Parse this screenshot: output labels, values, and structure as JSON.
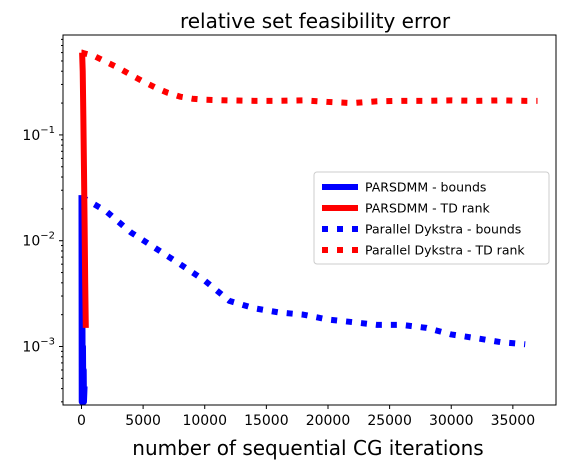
{
  "chart_data": {
    "type": "line",
    "title": "relative set feasibility error",
    "xlabel": "number of sequential CG iterations",
    "ylabel": "",
    "yscale": "log",
    "xlim": [
      -1500,
      38500
    ],
    "ylim": [
      0.00028,
      0.88
    ],
    "xticks": [
      0,
      5000,
      10000,
      15000,
      20000,
      25000,
      30000,
      35000
    ],
    "xtick_labels": [
      "0",
      "5000",
      "10000",
      "15000",
      "20000",
      "25000",
      "30000",
      "35000"
    ],
    "yticks": [
      0.001,
      0.01,
      0.1
    ],
    "ytick_labels": [
      {
        "base": "10",
        "exp": "−3"
      },
      {
        "base": "10",
        "exp": "−2"
      },
      {
        "base": "10",
        "exp": "−1"
      }
    ],
    "grid": false,
    "legend_position": "center-right",
    "series": [
      {
        "name": "PARSDMM - bounds",
        "color": "#0000ff",
        "style": "solid",
        "x": [
          0,
          20,
          40,
          60,
          80,
          100,
          120,
          150,
          180,
          200,
          250
        ],
        "y": [
          0.027,
          0.0003,
          0.002,
          0.0003,
          0.0015,
          0.0003,
          0.001,
          0.0003,
          0.0006,
          0.0003,
          0.00042
        ]
      },
      {
        "name": "PARSDMM - TD rank",
        "color": "#ff0000",
        "style": "solid",
        "x": [
          0,
          50,
          100,
          150,
          200,
          250,
          300,
          350
        ],
        "y": [
          0.6,
          0.6,
          0.4,
          0.15,
          0.05,
          0.015,
          0.004,
          0.0015
        ]
      },
      {
        "name": "Parallel Dykstra - bounds",
        "color": "#0000ff",
        "style": "dotted",
        "x": [
          0,
          2000,
          4000,
          6000,
          8000,
          10000,
          12000,
          14000,
          16000,
          18000,
          20000,
          22000,
          24000,
          26000,
          28000,
          30000,
          32000,
          34000,
          36000
        ],
        "y": [
          0.026,
          0.019,
          0.012,
          0.0085,
          0.006,
          0.0042,
          0.0027,
          0.0023,
          0.0021,
          0.002,
          0.0018,
          0.0017,
          0.0016,
          0.0016,
          0.0015,
          0.0013,
          0.0012,
          0.0011,
          0.00105
        ]
      },
      {
        "name": "Parallel Dykstra - TD rank",
        "color": "#ff0000",
        "style": "dotted",
        "x": [
          0,
          1000,
          2000,
          3000,
          4000,
          5000,
          6000,
          7000,
          8000,
          9000,
          10000,
          12000,
          14000,
          16000,
          18000,
          20000,
          22000,
          24000,
          26000,
          28000,
          30000,
          32000,
          34000,
          36000,
          37000
        ],
        "y": [
          0.6,
          0.56,
          0.49,
          0.43,
          0.37,
          0.32,
          0.28,
          0.25,
          0.23,
          0.22,
          0.215,
          0.212,
          0.21,
          0.21,
          0.212,
          0.205,
          0.2,
          0.208,
          0.21,
          0.21,
          0.212,
          0.21,
          0.212,
          0.21,
          0.21
        ]
      }
    ]
  }
}
